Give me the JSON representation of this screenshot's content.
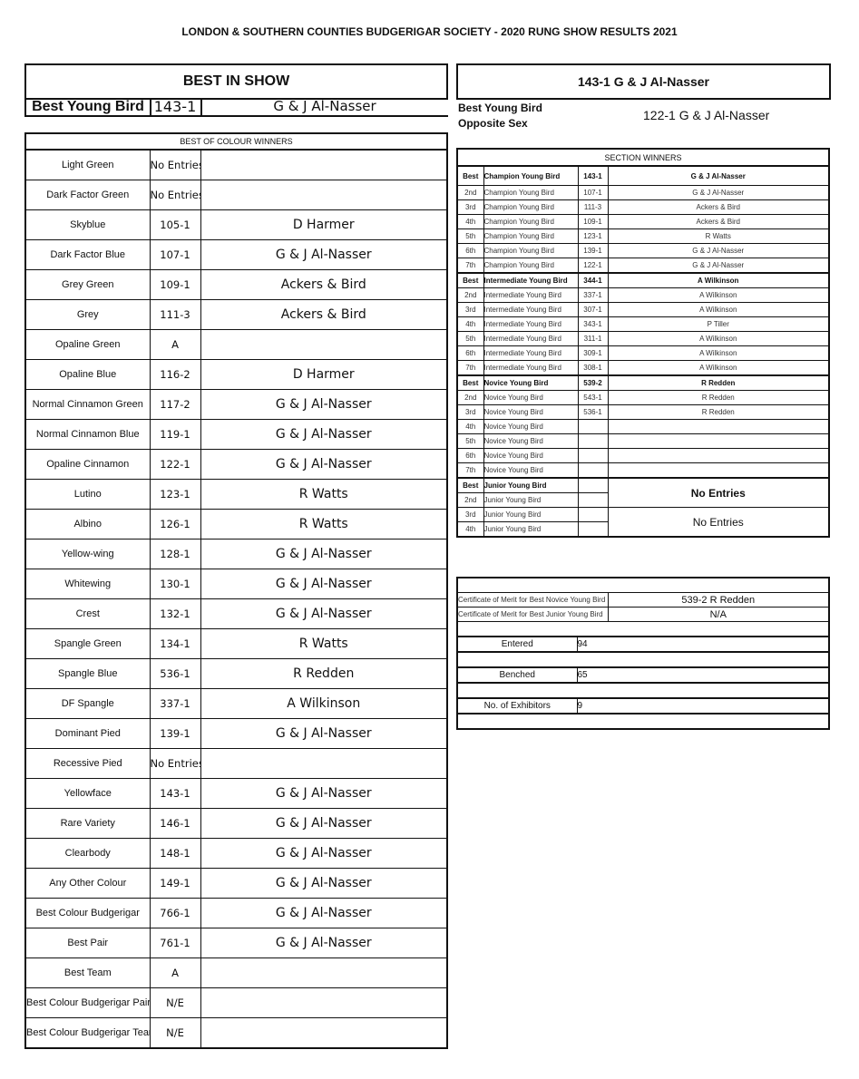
{
  "title": "LONDON  & SOUTHERN COUNTIES BUDGERIGAR SOCIETY -  2020 RUNG SHOW RESULTS 2021",
  "best_in_show": {
    "heading": "BEST IN SHOW",
    "label": "Best Young Bird",
    "ring": "143-1",
    "name": "G & J Al-Nasser"
  },
  "right_box": {
    "text": "143-1 G & J Al-Nasser"
  },
  "opposite_sex": {
    "label_line1": "Best Young Bird",
    "label_line2": "Opposite Sex",
    "value": "122-1 G & J Al-Nasser"
  },
  "colour_winners": {
    "heading": "BEST OF COLOUR WINNERS",
    "rows": [
      [
        "Light Green",
        "No Entries",
        ""
      ],
      [
        "Dark Factor Green",
        "No Entries",
        ""
      ],
      [
        "Skyblue",
        "105-1",
        "D Harmer"
      ],
      [
        "Dark Factor Blue",
        "107-1",
        "G & J Al-Nasser"
      ],
      [
        "Grey Green",
        "109-1",
        "Ackers & Bird"
      ],
      [
        "Grey",
        "111-3",
        "Ackers & Bird"
      ],
      [
        "Opaline Green",
        "A",
        ""
      ],
      [
        "Opaline Blue",
        "116-2",
        "D Harmer"
      ],
      [
        "Normal Cinnamon Green",
        "117-2",
        "G & J Al-Nasser"
      ],
      [
        "Normal Cinnamon Blue",
        "119-1",
        "G & J Al-Nasser"
      ],
      [
        "Opaline Cinnamon",
        "122-1",
        "G & J Al-Nasser"
      ],
      [
        "Lutino",
        "123-1",
        "R Watts"
      ],
      [
        "Albino",
        "126-1",
        "R Watts"
      ],
      [
        "Yellow-wing",
        "128-1",
        "G & J Al-Nasser"
      ],
      [
        "Whitewing",
        "130-1",
        "G & J Al-Nasser"
      ],
      [
        "Crest",
        "132-1",
        "G & J Al-Nasser"
      ],
      [
        "Spangle Green",
        "134-1",
        "R Watts"
      ],
      [
        "Spangle Blue",
        "536-1",
        "R Redden"
      ],
      [
        "DF Spangle",
        "337-1",
        "A Wilkinson"
      ],
      [
        "Dominant Pied",
        "139-1",
        "G & J Al-Nasser"
      ],
      [
        "Recessive Pied",
        "No Entries",
        ""
      ],
      [
        "Yellowface",
        "143-1",
        "G & J Al-Nasser"
      ],
      [
        "Rare Variety",
        "146-1",
        "G & J Al-Nasser"
      ],
      [
        "Clearbody",
        "148-1",
        "G & J Al-Nasser"
      ],
      [
        "Any Other Colour",
        "149-1",
        "G & J Al-Nasser"
      ],
      [
        "Best Colour Budgerigar",
        "766-1",
        "G & J Al-Nasser"
      ],
      [
        "Best Pair",
        "761-1",
        "G & J Al-Nasser"
      ],
      [
        "Best Team",
        "A",
        ""
      ],
      [
        "Best Colour Budgerigar Pair",
        "N/E",
        ""
      ],
      [
        "Best Colour Budgerigar Team",
        "N/E",
        ""
      ]
    ]
  },
  "section_winners": {
    "heading": "SECTION WINNERS",
    "rows": [
      [
        "Best",
        "Champion Young Bird",
        "143-1",
        "G & J Al-Nasser"
      ],
      [
        "2nd",
        "Champion Young Bird",
        "107-1",
        "G & J Al-Nasser"
      ],
      [
        "3rd",
        "Champion Young Bird",
        "111-3",
        "Ackers & Bird"
      ],
      [
        "4th",
        "Champion Young Bird",
        "109-1",
        "Ackers & Bird"
      ],
      [
        "5th",
        "Champion Young Bird",
        "123-1",
        "R Watts"
      ],
      [
        "6th",
        "Champion Young Bird",
        "139-1",
        "G & J Al-Nasser"
      ],
      [
        "7th",
        "Champion Young Bird",
        "122-1",
        "G & J Al-Nasser"
      ],
      [
        "Best",
        "Intermediate Young Bird",
        "344-1",
        "A Wilkinson"
      ],
      [
        "2nd",
        "Intermediate Young Bird",
        "337-1",
        "A Wilkinson"
      ],
      [
        "3rd",
        "Intermediate Young Bird",
        "307-1",
        "A Wilkinson"
      ],
      [
        "4th",
        "Intermediate Young Bird",
        "343-1",
        "P Tiller"
      ],
      [
        "5th",
        "Intermediate Young Bird",
        "311-1",
        "A Wilkinson"
      ],
      [
        "6th",
        "Intermediate Young Bird",
        "309-1",
        "A Wilkinson"
      ],
      [
        "7th",
        "Intermediate Young Bird",
        "308-1",
        "A Wilkinson"
      ],
      [
        "Best",
        "Novice Young Bird",
        "539-2",
        "R Redden"
      ],
      [
        "2nd",
        "Novice Young Bird",
        "543-1",
        "R Redden"
      ],
      [
        "3rd",
        "Novice Young Bird",
        "536-1",
        "R Redden"
      ],
      [
        "4th",
        "Novice Young Bird",
        "",
        ""
      ],
      [
        "5th",
        "Novice Young Bird",
        "",
        ""
      ],
      [
        "6th",
        "Novice Young Bird",
        "",
        ""
      ],
      [
        "7th",
        "Novice Young Bird",
        "",
        ""
      ],
      [
        "Best",
        "Junior Young Bird",
        "",
        "No Entries"
      ],
      [
        "2nd",
        "Junior Young Bird",
        "",
        ""
      ],
      [
        "3rd",
        "Junior Young Bird",
        "",
        "No Entries"
      ],
      [
        "4th",
        "Junior Young Bird",
        "",
        ""
      ]
    ]
  },
  "certificates": [
    {
      "label": "Certificate of Merit for Best Novice Young Bird",
      "value": "539-2 R Redden"
    },
    {
      "label": "Certificate of Merit for Best Junior Young Bird",
      "value": "N/A"
    }
  ],
  "stats": [
    {
      "label": "Entered",
      "value": "94"
    },
    {
      "label": "Benched",
      "value": "65"
    },
    {
      "label": "No. of Exhibitors",
      "value": "9"
    }
  ]
}
